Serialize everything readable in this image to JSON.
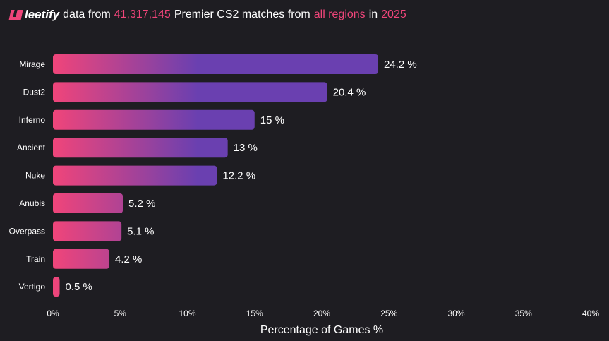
{
  "header": {
    "logo_text": "leetify",
    "part1": "data from",
    "matches": "41,317,145",
    "part2": "Premier CS2 matches from",
    "regions": "all regions",
    "part3": "in",
    "year": "2025"
  },
  "colors": {
    "accent": "#f0457a",
    "bar_start": "#f0457a",
    "bar_end": "#6a40b0",
    "background": "#1e1d22"
  },
  "chart_data": {
    "type": "bar",
    "orientation": "horizontal",
    "categories": [
      "Mirage",
      "Dust2",
      "Inferno",
      "Ancient",
      "Nuke",
      "Anubis",
      "Overpass",
      "Train",
      "Vertigo"
    ],
    "values": [
      24.2,
      20.4,
      15,
      13,
      12.2,
      5.2,
      5.1,
      4.2,
      0.5
    ],
    "value_labels": [
      "24.2 %",
      "20.4 %",
      "15 %",
      "13 %",
      "12.2 %",
      "5.2 %",
      "5.1 %",
      "4.2 %",
      "0.5 %"
    ],
    "xlabel": "Percentage of Games %",
    "xlim": [
      0,
      40
    ],
    "xticks": [
      "0%",
      "5%",
      "10%",
      "15%",
      "20%",
      "25%",
      "30%",
      "35%",
      "40%"
    ],
    "grid": false
  }
}
